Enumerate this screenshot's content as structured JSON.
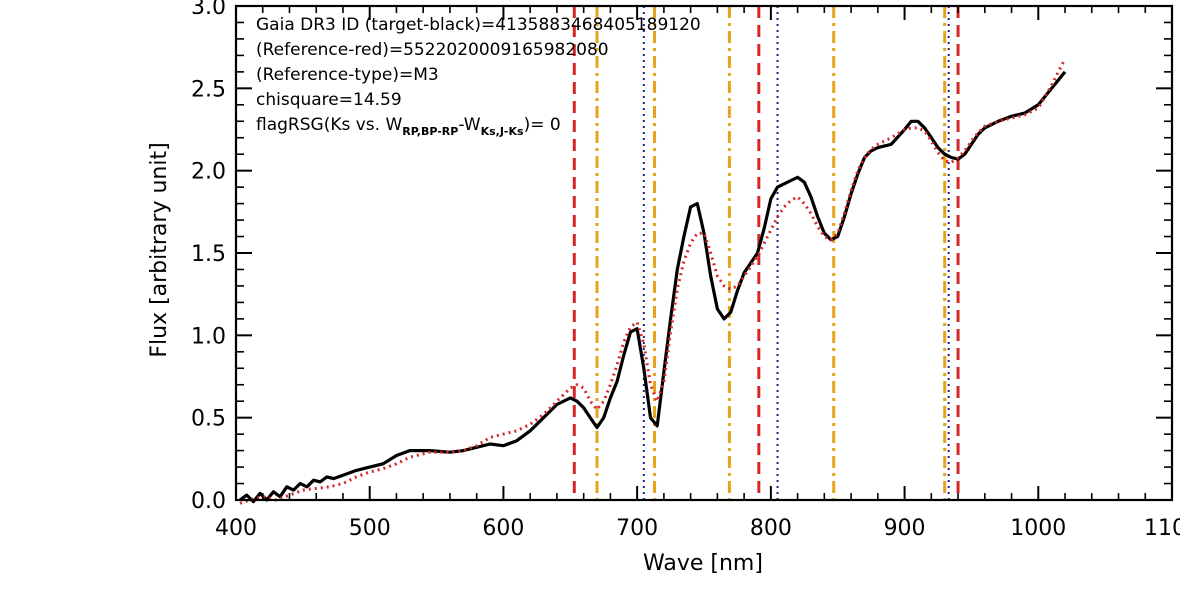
{
  "chart_data": {
    "type": "line",
    "xlabel": "Wave [nm]",
    "ylabel": "Flux [arbitrary unit]",
    "xlim": [
      400,
      1100
    ],
    "ylim": [
      0,
      3.0
    ],
    "x_ticks": [
      "400",
      "500",
      "600",
      "700",
      "800",
      "900",
      "1000",
      "1100"
    ],
    "y_ticks": [
      "0.0",
      "0.5",
      "1.0",
      "1.5",
      "2.0",
      "2.5",
      "3.0"
    ],
    "grid": false,
    "annotations": {
      "line1": "Gaia DR3 ID (target-black)=4135883468405189120",
      "line2": "(Reference-red)=5522020009165982080",
      "line3": "(Reference-type)=M3",
      "line4": "chisquare=14.59",
      "flag_prefix": "flagRSG(Ks vs. W",
      "flag_sub1": "RP,BP-RP",
      "flag_mid": "-W",
      "flag_sub2": "Ks,J-Ks",
      "flag_suffix": ")= 0"
    },
    "series": [
      {
        "color": "#000000",
        "style": "solid",
        "x": [
          403,
          408,
          413,
          418,
          423,
          428,
          433,
          438,
          443,
          448,
          453,
          458,
          463,
          468,
          473,
          480,
          490,
          500,
          510,
          520,
          530,
          545,
          560,
          570,
          580,
          590,
          600,
          610,
          620,
          630,
          640,
          650,
          655,
          660,
          665,
          670,
          675,
          680,
          685,
          690,
          695,
          700,
          705,
          710,
          715,
          720,
          725,
          730,
          735,
          740,
          745,
          750,
          755,
          760,
          765,
          770,
          775,
          780,
          785,
          790,
          795,
          800,
          805,
          810,
          815,
          820,
          825,
          830,
          835,
          840,
          845,
          850,
          855,
          860,
          865,
          870,
          875,
          880,
          890,
          900,
          905,
          910,
          915,
          920,
          925,
          930,
          935,
          940,
          945,
          950,
          955,
          960,
          970,
          980,
          990,
          1000,
          1010,
          1020
        ],
        "y": [
          0.0,
          0.03,
          -0.01,
          0.04,
          0.0,
          0.05,
          0.02,
          0.08,
          0.06,
          0.1,
          0.08,
          0.12,
          0.11,
          0.14,
          0.13,
          0.15,
          0.18,
          0.2,
          0.22,
          0.27,
          0.3,
          0.3,
          0.29,
          0.3,
          0.32,
          0.34,
          0.33,
          0.36,
          0.42,
          0.5,
          0.58,
          0.62,
          0.6,
          0.56,
          0.5,
          0.44,
          0.5,
          0.62,
          0.72,
          0.88,
          1.02,
          1.04,
          0.8,
          0.5,
          0.45,
          0.78,
          1.1,
          1.4,
          1.6,
          1.78,
          1.8,
          1.62,
          1.36,
          1.16,
          1.1,
          1.14,
          1.27,
          1.38,
          1.44,
          1.5,
          1.65,
          1.83,
          1.9,
          1.92,
          1.94,
          1.96,
          1.93,
          1.84,
          1.72,
          1.62,
          1.58,
          1.6,
          1.72,
          1.86,
          1.98,
          2.08,
          2.12,
          2.14,
          2.16,
          2.25,
          2.3,
          2.3,
          2.26,
          2.2,
          2.14,
          2.1,
          2.08,
          2.07,
          2.1,
          2.16,
          2.22,
          2.26,
          2.3,
          2.33,
          2.35,
          2.4,
          2.5,
          2.6
        ]
      },
      {
        "color": "#d62728",
        "style": "dotted",
        "x": [
          403,
          410,
          420,
          430,
          440,
          450,
          460,
          470,
          480,
          490,
          500,
          510,
          520,
          530,
          545,
          560,
          570,
          580,
          590,
          600,
          610,
          620,
          630,
          640,
          650,
          655,
          660,
          665,
          670,
          675,
          680,
          685,
          690,
          695,
          700,
          705,
          710,
          715,
          720,
          725,
          730,
          735,
          740,
          745,
          750,
          755,
          760,
          765,
          770,
          775,
          780,
          785,
          790,
          795,
          800,
          805,
          810,
          815,
          820,
          825,
          830,
          835,
          840,
          845,
          850,
          855,
          860,
          865,
          870,
          875,
          880,
          890,
          900,
          905,
          910,
          915,
          920,
          925,
          930,
          935,
          940,
          945,
          950,
          955,
          960,
          970,
          980,
          990,
          1000,
          1010,
          1020
        ],
        "y": [
          -0.02,
          0.0,
          0.02,
          0.0,
          0.03,
          0.06,
          0.07,
          0.08,
          0.1,
          0.14,
          0.17,
          0.19,
          0.22,
          0.26,
          0.29,
          0.29,
          0.3,
          0.33,
          0.38,
          0.4,
          0.42,
          0.46,
          0.52,
          0.6,
          0.68,
          0.7,
          0.68,
          0.6,
          0.55,
          0.6,
          0.7,
          0.82,
          0.96,
          1.05,
          1.08,
          0.95,
          0.7,
          0.6,
          0.72,
          1.02,
          1.28,
          1.45,
          1.56,
          1.62,
          1.62,
          1.5,
          1.36,
          1.3,
          1.28,
          1.3,
          1.36,
          1.42,
          1.48,
          1.56,
          1.64,
          1.72,
          1.78,
          1.82,
          1.84,
          1.8,
          1.74,
          1.66,
          1.6,
          1.58,
          1.62,
          1.74,
          1.88,
          2.0,
          2.08,
          2.13,
          2.16,
          2.2,
          2.25,
          2.26,
          2.26,
          2.24,
          2.18,
          2.11,
          2.06,
          2.05,
          2.08,
          2.12,
          2.18,
          2.23,
          2.27,
          2.3,
          2.32,
          2.34,
          2.38,
          2.52,
          2.68
        ]
      }
    ],
    "vertical_lines": [
      {
        "x": 653,
        "color": "#d62728",
        "style": "dashed"
      },
      {
        "x": 670,
        "color": "#e8a31c",
        "style": "dashdot"
      },
      {
        "x": 705,
        "color": "#1f1f8f",
        "style": "dotted"
      },
      {
        "x": 713,
        "color": "#e8a31c",
        "style": "dashdot"
      },
      {
        "x": 769,
        "color": "#e8a31c",
        "style": "dashdot"
      },
      {
        "x": 791,
        "color": "#d62728",
        "style": "dashed"
      },
      {
        "x": 805,
        "color": "#1f1f8f",
        "style": "dotted"
      },
      {
        "x": 847,
        "color": "#e8a31c",
        "style": "dashdot"
      },
      {
        "x": 930,
        "color": "#e8a31c",
        "style": "dashdot"
      },
      {
        "x": 933,
        "color": "#1f1f8f",
        "style": "dotted"
      },
      {
        "x": 940,
        "color": "#d62728",
        "style": "dashed"
      }
    ]
  }
}
